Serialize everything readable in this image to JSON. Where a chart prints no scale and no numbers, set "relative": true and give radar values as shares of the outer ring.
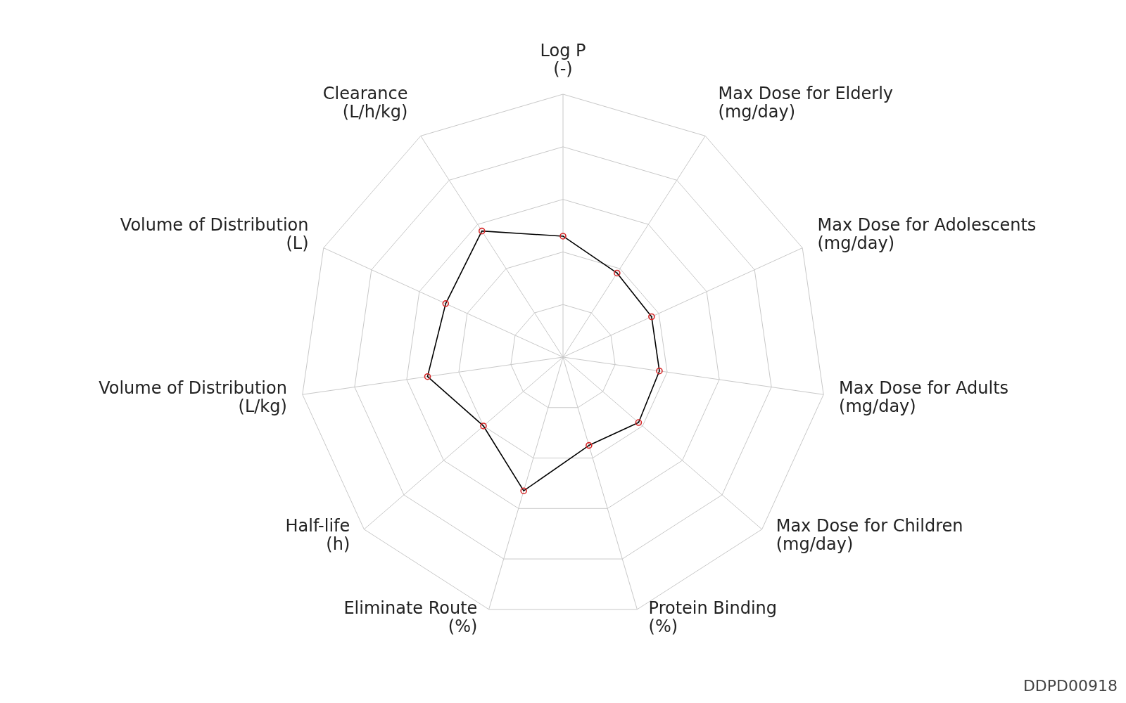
{
  "chart_data": {
    "type": "radar",
    "relative": true,
    "marker": "circle",
    "line_style": "solid",
    "grid": true,
    "categories": [
      "Log P (-)",
      "Max Dose for Elderly (mg/day)",
      "Max Dose for Adolescents (mg/day)",
      "Max Dose for Adults (mg/day)",
      "Max Dose for Children (mg/day)",
      "Protein Binding (%)",
      "Eliminate Route (%)",
      "Half-life (h)",
      "Volume of Distribution (L/kg)",
      "Volume of Distribution (L)",
      "Clearance (L/h/kg)"
    ],
    "series": [
      {
        "color": "#000000",
        "values": [
          0.46,
          0.38,
          0.37,
          0.37,
          0.38,
          0.35,
          0.53,
          0.4,
          0.52,
          0.49,
          0.57
        ]
      }
    ],
    "annotations": [
      "DDPD00918"
    ]
  }
}
